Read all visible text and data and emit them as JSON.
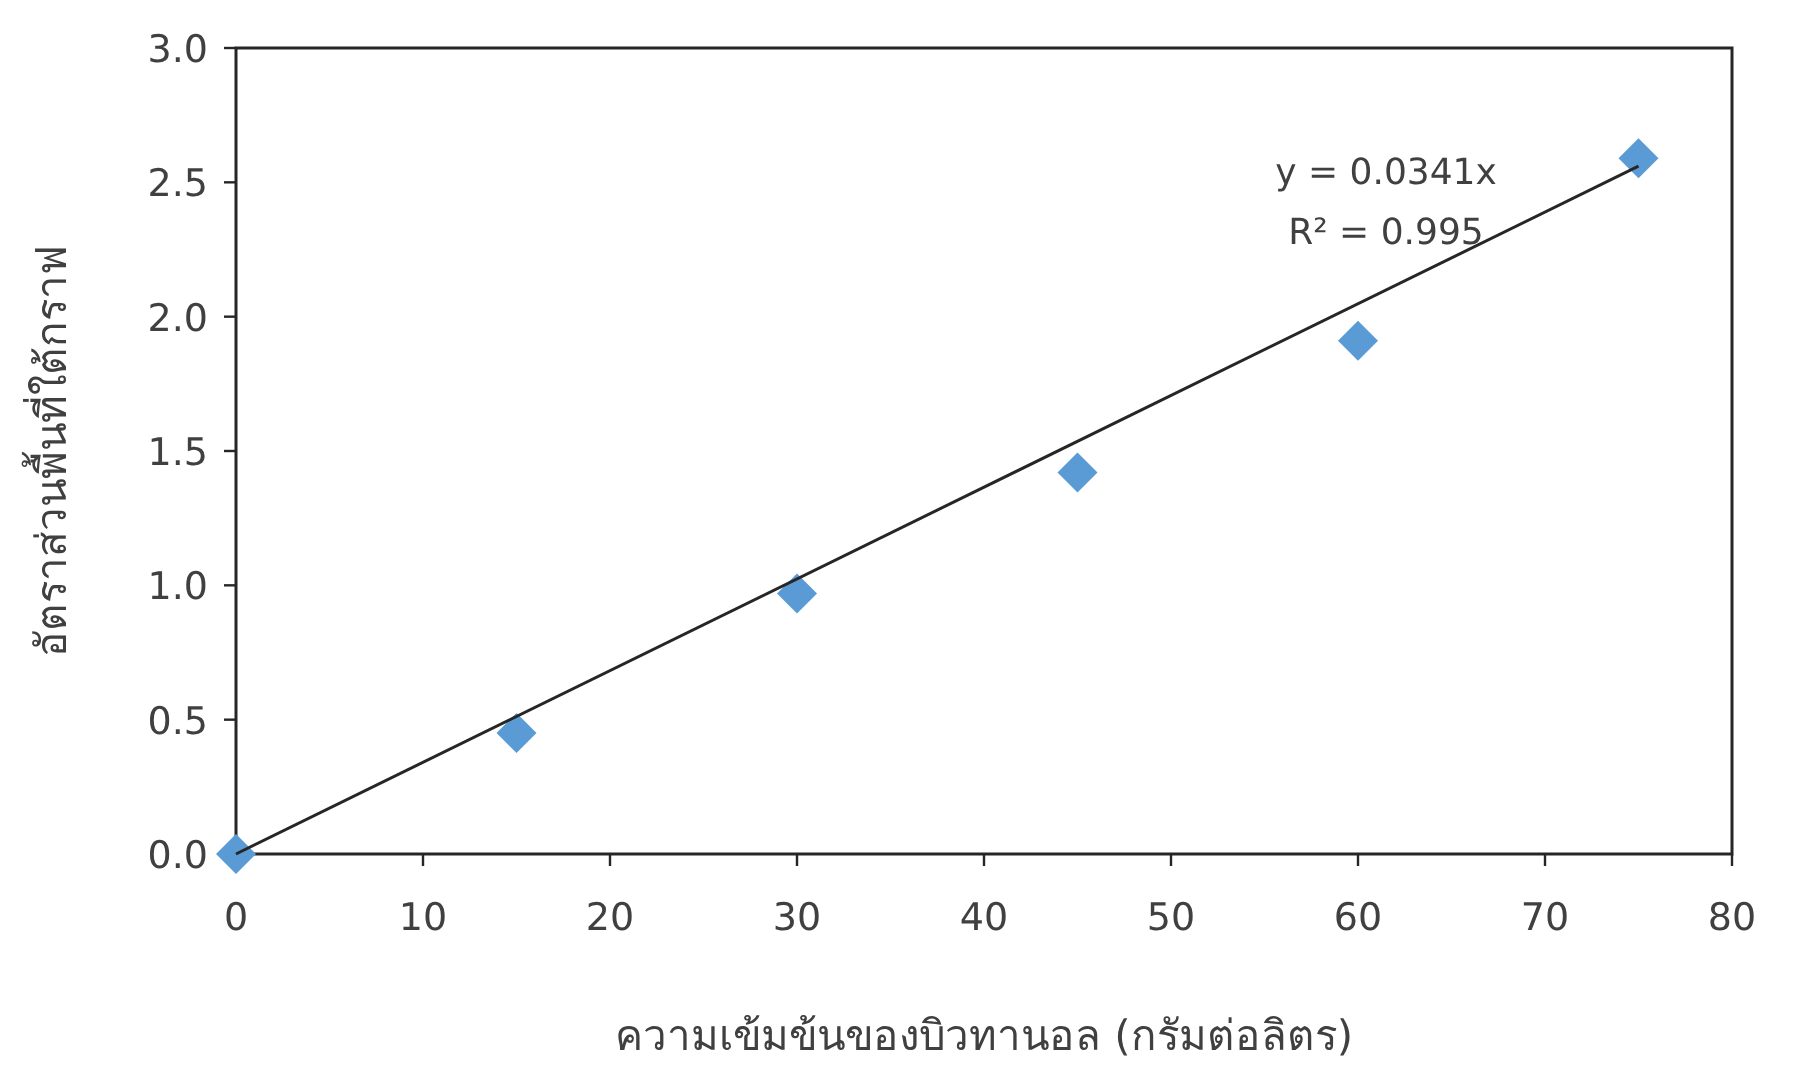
{
  "chart_data": {
    "type": "scatter",
    "xlabel": "ความเข้มข้นของบิวทานอล (กรัมต่อลิตร)",
    "ylabel": "อัตราส่วนพื้นที่ใต้กราฟ",
    "xlim": [
      0,
      80
    ],
    "xticks": [
      0,
      10,
      20,
      30,
      40,
      50,
      60,
      70,
      80
    ],
    "ylim": [
      0,
      3.0
    ],
    "yticks": [
      {
        "value": 0,
        "label": "0.0"
      },
      {
        "value": 0.5,
        "label": "0.5"
      },
      {
        "value": 1,
        "label": "1.0"
      },
      {
        "value": 1.5,
        "label": "1.5"
      },
      {
        "value": 2,
        "label": "2.0"
      },
      {
        "value": 2.5,
        "label": "2.5"
      },
      {
        "value": 3,
        "label": "3.0"
      }
    ],
    "grid": false,
    "marker": "diamond",
    "series": [
      {
        "color": "#5b9bd5",
        "x": [
          0,
          15,
          30,
          45,
          60,
          75
        ],
        "values": [
          0,
          0.45,
          0.97,
          1.42,
          1.91,
          2.59
        ]
      },
      {
        "type": "line",
        "color": "#262626",
        "marker": "none",
        "x": [
          0,
          75
        ],
        "values": [
          0,
          2.56
        ]
      }
    ],
    "annotations": [
      "y = 0.0341x",
      "R² = 0.995"
    ]
  }
}
